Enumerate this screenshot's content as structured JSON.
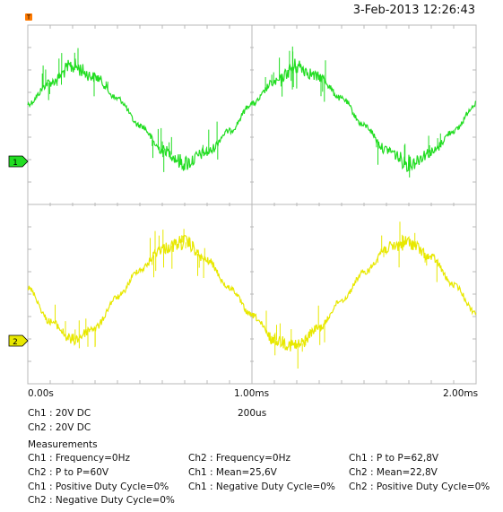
{
  "timestamp": "3-Feb-2013 12:26:43",
  "ch1_channel_info": "Ch1 : 20V  DC",
  "ch2_channel_info": "Ch2 : 20V  DC",
  "timebase": "200us",
  "measurements_title": "Measurements",
  "measurements": [
    "Ch1 : Frequency=0Hz",
    "Ch2 : Frequency=0Hz",
    "Ch1 : P to P=62,8V",
    "Ch2 : P to P=60V",
    "Ch1 : Mean=25,6V",
    "Ch2 : Mean=22,8V",
    "Ch1 : Positive Duty Cycle=0%",
    "Ch1 : Negative Duty Cycle=0%",
    "Ch2 : Positive Duty Cycle=0%",
    "Ch2 : Negative Duty Cycle=0%"
  ],
  "colors": {
    "grid": "#b8b8b8",
    "ch1": "#22dd22",
    "ch2": "#e8e800",
    "trigger_marker": "#ff7a00"
  },
  "chart_data": {
    "type": "line",
    "x_unit": "ms",
    "x_ticks": [
      "0.00s",
      "1.00ms",
      "2.00ms"
    ],
    "xlim": [
      0,
      2.0
    ],
    "series": [
      {
        "name": "1",
        "x": [
          0,
          0.1,
          0.2,
          0.3,
          0.4,
          0.5,
          0.6,
          0.7,
          0.8,
          0.9,
          1.0,
          1.1,
          1.2,
          1.3,
          1.4,
          1.5,
          1.6,
          1.7,
          1.8,
          1.9,
          2.0
        ],
        "values": [
          0.2,
          0.6,
          0.9,
          0.7,
          0.3,
          -0.2,
          -0.65,
          -0.9,
          -0.7,
          -0.3,
          0.2,
          0.6,
          0.9,
          0.7,
          0.3,
          -0.2,
          -0.65,
          -0.9,
          -0.7,
          -0.3,
          0.2
        ]
      },
      {
        "name": "2",
        "x": [
          0,
          0.1,
          0.2,
          0.3,
          0.4,
          0.5,
          0.6,
          0.7,
          0.8,
          0.9,
          1.0,
          1.1,
          1.2,
          1.3,
          1.4,
          1.5,
          1.6,
          1.7,
          1.8,
          1.9,
          2.0
        ],
        "values": [
          0.1,
          -0.45,
          -0.75,
          -0.55,
          -0.05,
          0.4,
          0.75,
          0.85,
          0.55,
          0.1,
          -0.35,
          -0.75,
          -0.85,
          -0.55,
          -0.1,
          0.35,
          0.75,
          0.85,
          0.6,
          0.15,
          -0.3
        ]
      }
    ]
  }
}
